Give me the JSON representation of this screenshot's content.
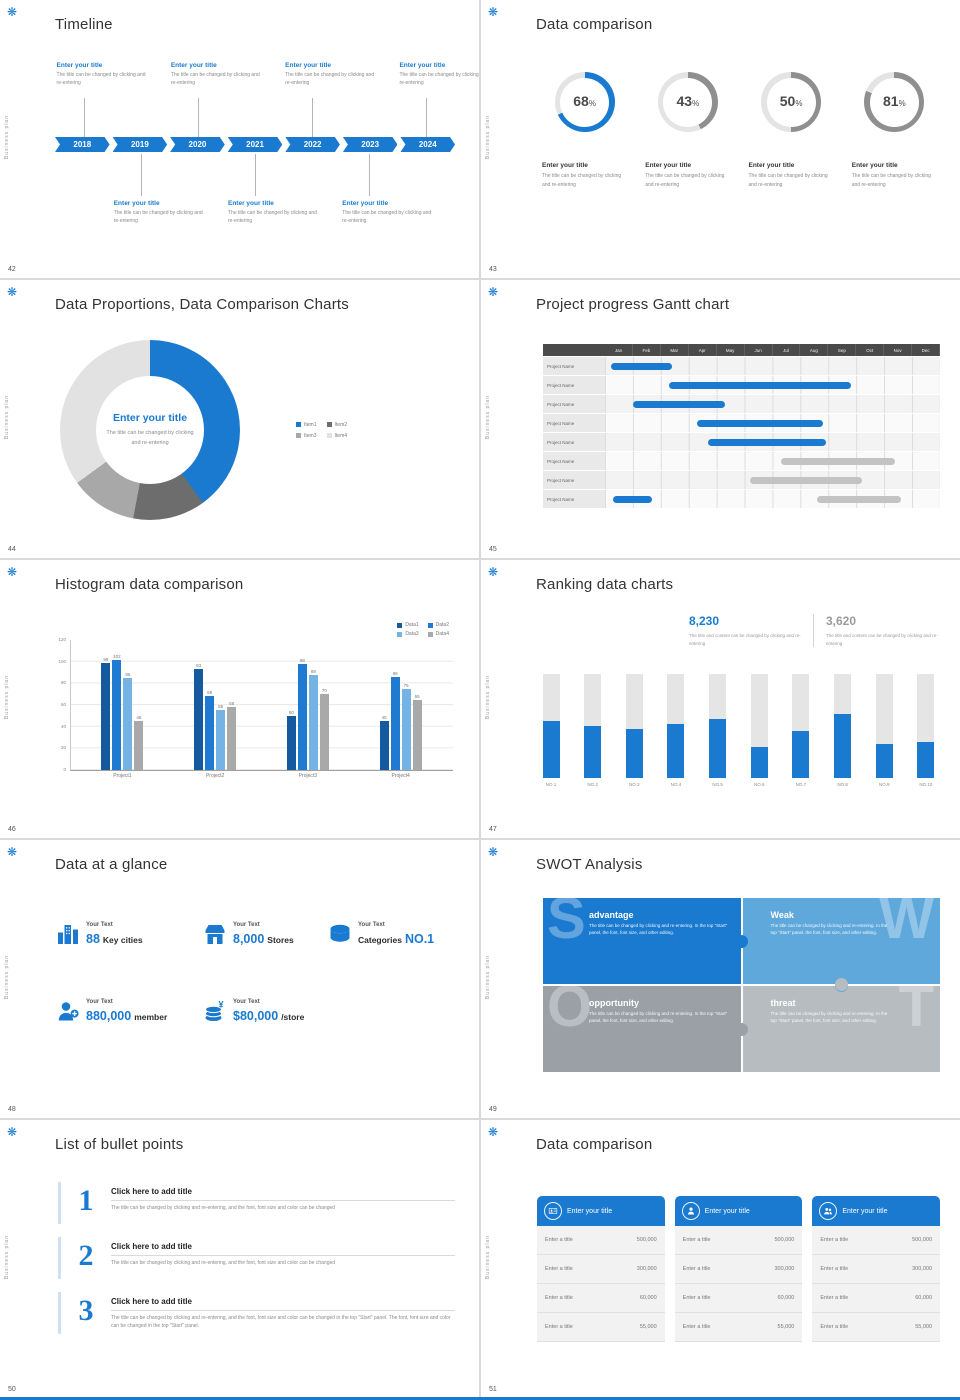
{
  "meta": {
    "accent": "#1a7ad0",
    "accent_light": "#5fa8dc",
    "gray_mid": "#a9a9a9",
    "gray_bar": "#c3c3c3",
    "sidebar_text": "Business plan",
    "logo_glyph": "❋"
  },
  "slide42": {
    "page": "42",
    "title": "Timeline",
    "years": [
      "2018",
      "2019",
      "2020",
      "2021",
      "2022",
      "2023",
      "2024"
    ],
    "top_items": [
      {
        "title": "Enter your title",
        "desc": "The title can be changed by clicking and re-entering"
      },
      {
        "title": "Enter your title",
        "desc": "The title can be changed by clicking and re-entering"
      },
      {
        "title": "Enter your title",
        "desc": "The title can be changed by clicking and re-entering"
      },
      {
        "title": "Enter your title",
        "desc": "The title can be changed by clicking and re-entering"
      }
    ],
    "bottom_items": [
      {
        "title": "Enter your title",
        "desc": "The title can be changed by clicking and re-entering"
      },
      {
        "title": "Enter your title",
        "desc": "The title can be changed by clicking and re-entering"
      },
      {
        "title": "Enter your title",
        "desc": "The title can be changed by clicking and re-entering"
      }
    ]
  },
  "slide43": {
    "page": "43",
    "title": "Data comparison",
    "items": [
      {
        "title": "Enter your title",
        "desc": "The title can be changed by clicking and re-entering",
        "highlight": true
      },
      {
        "title": "Enter your title",
        "desc": "The title can be changed by clicking and re-entering",
        "highlight": false
      },
      {
        "title": "Enter your title",
        "desc": "The title can be changed by clicking and re-entering",
        "highlight": false
      },
      {
        "title": "Enter your title",
        "desc": "The title can be changed by clicking and re-entering",
        "highlight": false
      }
    ]
  },
  "slide44": {
    "page": "44",
    "title": "Data Proportions, Data Comparison Charts",
    "center_title": "Enter your title",
    "center_desc": "The title can be changed by clicking and re-entering"
  },
  "slide45": {
    "page": "45",
    "title": "Project progress Gantt chart"
  },
  "slide46": {
    "page": "46",
    "title": "Histogram data comparison"
  },
  "slide47": {
    "page": "47",
    "title": "Ranking data charts",
    "stats": [
      {
        "value": "8,230",
        "desc": "The title and content can be changed by clicking and re-entering",
        "highlight": true
      },
      {
        "value": "3,620",
        "desc": "The title and content can be changed by clicking and re-entering",
        "highlight": false
      }
    ]
  },
  "slide48": {
    "page": "48",
    "title": "Data at a glance",
    "items": [
      {
        "icon": "city-icon",
        "label": "Your Text",
        "big": "88",
        "small": "Key cities",
        "big_first": true
      },
      {
        "icon": "store-icon",
        "label": "Your Text",
        "big": "8,000",
        "small": "Stores",
        "big_first": true
      },
      {
        "icon": "categories-icon",
        "label": "Your Text",
        "big": "NO.1",
        "small": "Categories",
        "big_first": false
      },
      {
        "icon": "member-icon",
        "label": "Your Text",
        "big": "880,000",
        "small": "member",
        "big_first": true
      },
      {
        "icon": "money-icon",
        "label": "Your Text",
        "big": "$80,000",
        "small": "/store",
        "big_first": true
      }
    ]
  },
  "slide49": {
    "page": "49",
    "title": "SWOT Analysis",
    "quads": [
      {
        "letter": "S",
        "title": "advantage",
        "desc": "The title can be changed by clicking and re-entering. In the top \"Start\" panel, the font, font size, and other editing.",
        "color": "#1a7ad0",
        "letter_side": "left"
      },
      {
        "letter": "W",
        "title": "Weak",
        "desc": "The title can be changed by clicking and re-entering. In the top \"Start\" panel, the font, font size, and other editing.",
        "color": "#5fa8dc",
        "letter_side": "right"
      },
      {
        "letter": "O",
        "title": "opportunity",
        "desc": "The title can be changed by clicking and re-entering. In the top \"Start\" panel, the font, font size, and other editing.",
        "color": "#9aa0a5",
        "letter_side": "left"
      },
      {
        "letter": "T",
        "title": "threat",
        "desc": "The title can be changed by clicking and re-entering. In the top \"Start\" panel, the font, font size, and other editing.",
        "color": "#b7bcc0",
        "letter_side": "right"
      }
    ]
  },
  "slide50": {
    "page": "50",
    "title": "List of bullet points",
    "items": [
      {
        "num": "1",
        "title": "Click here to add title",
        "desc": "The title can be changed by clicking and re-entering, and the font, font size and color can be changed"
      },
      {
        "num": "2",
        "title": "Click here to add title",
        "desc": "The title can be changed by clicking and re-entering, and the font, font size and color can be changed"
      },
      {
        "num": "3",
        "title": "Click here to add title",
        "desc": "The title can be changed by clicking and re-entering, and the font, font size and color can be changed in the top \"Start\" panel. The font, font size and color can be changed in the top \"Start\" panel."
      }
    ]
  },
  "slide51": {
    "page": "51",
    "title": "Data comparison",
    "cards": [
      {
        "icon": "id-card-icon",
        "header": "Enter your title",
        "rows": [
          [
            "Enter a title",
            "500,000"
          ],
          [
            "Enter a title",
            "300,000"
          ],
          [
            "Enter a title",
            "60,000"
          ],
          [
            "Enter a title",
            "55,000"
          ]
        ]
      },
      {
        "icon": "person-icon",
        "header": "Enter your title",
        "rows": [
          [
            "Enter a title",
            "500,000"
          ],
          [
            "Enter a title",
            "300,000"
          ],
          [
            "Enter a title",
            "60,000"
          ],
          [
            "Enter a title",
            "55,000"
          ]
        ]
      },
      {
        "icon": "people-icon",
        "header": "Enter your title",
        "rows": [
          [
            "Enter a title",
            "500,000"
          ],
          [
            "Enter a title",
            "300,000"
          ],
          [
            "Enter a title",
            "60,000"
          ],
          [
            "Enter a title",
            "55,000"
          ]
        ]
      }
    ]
  },
  "chart_data": [
    {
      "slide": "43",
      "type": "pie",
      "variant": "donut-multiples",
      "title": "Data comparison",
      "values": [
        68,
        43,
        50,
        81
      ],
      "unit": "%",
      "highlight_index": 0
    },
    {
      "slide": "44",
      "type": "pie",
      "variant": "donut",
      "title": "Data Proportions, Data Comparison Charts",
      "labels": [
        "Item1",
        "Item2",
        "Item3",
        "Item4"
      ],
      "values": [
        40,
        13,
        12,
        35
      ],
      "colors": [
        "#1a7ad0",
        "#6d6d6d",
        "#a8a8a8",
        "#e2e2e2"
      ]
    },
    {
      "slide": "45",
      "type": "bar",
      "variant": "gantt",
      "title": "Project progress Gantt chart",
      "months": [
        "Jan",
        "Feb",
        "Mar",
        "Apr",
        "May",
        "Jun",
        "Jul",
        "Aug",
        "Sep",
        "Oct",
        "Nov",
        "Dec"
      ],
      "row_label": "Project Name",
      "rows": [
        {
          "bars": [
            {
              "start": 0.2,
              "end": 2.4,
              "color": "accent"
            }
          ]
        },
        {
          "bars": [
            {
              "start": 2.3,
              "end": 8.8,
              "color": "accent"
            }
          ]
        },
        {
          "bars": [
            {
              "start": 1.0,
              "end": 4.3,
              "color": "accent"
            }
          ]
        },
        {
          "bars": [
            {
              "start": 3.3,
              "end": 7.8,
              "color": "accent"
            }
          ]
        },
        {
          "bars": [
            {
              "start": 3.7,
              "end": 7.9,
              "color": "accent"
            }
          ]
        },
        {
          "bars": [
            {
              "start": 6.3,
              "end": 10.4,
              "color": "gray"
            }
          ]
        },
        {
          "bars": [
            {
              "start": 5.2,
              "end": 9.2,
              "color": "gray"
            }
          ]
        },
        {
          "bars": [
            {
              "start": 0.3,
              "end": 1.7,
              "color": "accent"
            },
            {
              "start": 7.6,
              "end": 10.6,
              "color": "gray"
            }
          ]
        }
      ]
    },
    {
      "slide": "46",
      "type": "bar",
      "variant": "grouped",
      "title": "Histogram data comparison",
      "categories": [
        "Project1",
        "Project2",
        "Project3",
        "Project4"
      ],
      "series": [
        {
          "name": "Data1",
          "color": "#15599e",
          "values": [
            99,
            93,
            50,
            45
          ]
        },
        {
          "name": "Data2",
          "color": "#1f7ad1",
          "values": [
            102,
            68,
            98,
            86
          ]
        },
        {
          "name": "Data3",
          "color": "#74b3e4",
          "values": [
            85,
            55,
            88,
            75
          ]
        },
        {
          "name": "Data4",
          "color": "#a9a9a9",
          "values": [
            45,
            58,
            70,
            65
          ]
        }
      ],
      "y_ticks": [
        0,
        20,
        40,
        60,
        80,
        100,
        120
      ],
      "ylim": [
        0,
        120
      ]
    },
    {
      "slide": "47",
      "type": "bar",
      "variant": "ranking",
      "title": "Ranking data charts",
      "categories": [
        "NO.1",
        "NO.2",
        "NO.3",
        "NO.4",
        "NO.5",
        "NO.6",
        "NO.7",
        "NO.8",
        "NO.9",
        "NO.10"
      ],
      "values": [
        55,
        50,
        47,
        52,
        57,
        30,
        45,
        62,
        33,
        35
      ],
      "ylim": [
        0,
        100
      ],
      "unit": "%"
    }
  ]
}
